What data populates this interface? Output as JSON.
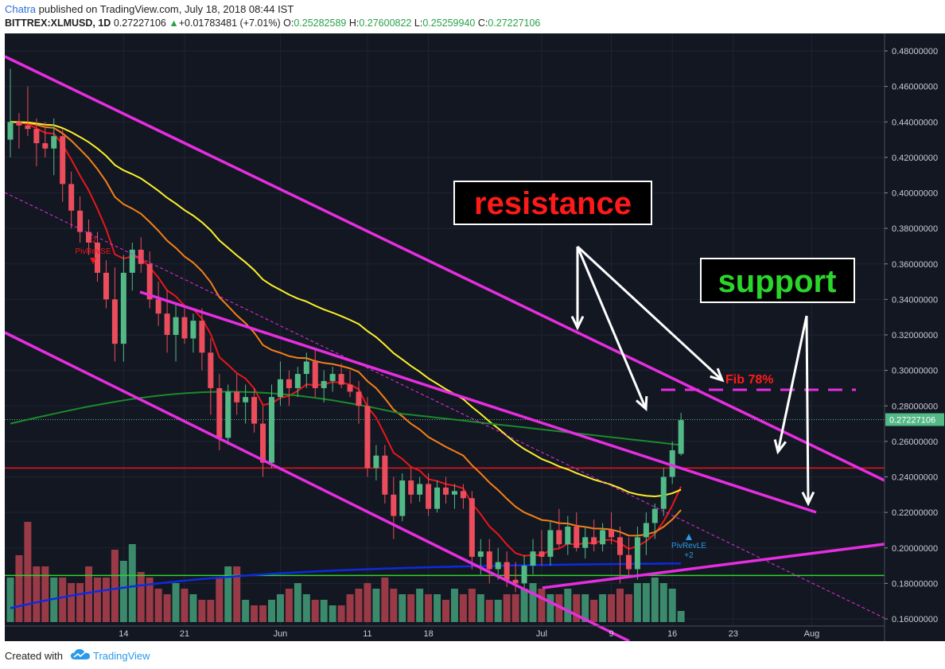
{
  "header": {
    "author": "Chatra",
    "published_text": "published on TradingView.com, July 18, 2018 08:44 IST",
    "symbol": "BITTREX:XLMUSD, 1D",
    "last": "0.27227106",
    "change": "+0.01783481 (+7.01%)",
    "o_label": "O:",
    "o_val": "0.25282589",
    "h_label": "H:",
    "h_val": "0.27600822",
    "l_label": "L:",
    "l_val": "0.25259940",
    "c_label": "C:",
    "c_val": "0.27227106"
  },
  "footer": {
    "created_with": "Created with",
    "brand": "TradingView"
  },
  "annotations": {
    "resistance": "resistance",
    "support": "support",
    "fib": "Fib 78%",
    "pivrev_se_num": "-2",
    "pivrev_se": "PivRevSE",
    "pivrev_le": "PivRevLE",
    "pivrev_le_num": "+2"
  },
  "colors": {
    "background": "#131722",
    "up_candle": "#53b987",
    "down_candle": "#eb4d5c",
    "channel": "#e62ee0",
    "ema_red": "#e8161b",
    "ema_orange": "#f57f17",
    "ema_yellow": "#fbf02a",
    "ma_green": "#1b8a2a",
    "ma_blue": "#0d2be0",
    "support_green": "#2bd62b",
    "horizontal_red": "#e8161b"
  },
  "chart_data": {
    "type": "candlestick",
    "y_axis": {
      "min": 0.15,
      "max": 0.485,
      "ticks": [
        "0.48000000",
        "0.46000000",
        "0.44000000",
        "0.42000000",
        "0.40000000",
        "0.38000000",
        "0.36000000",
        "0.34000000",
        "0.32000000",
        "0.30000000",
        "0.28000000",
        "0.26000000",
        "0.24000000",
        "0.22000000",
        "0.20000000",
        "0.18000000",
        "0.16000000"
      ],
      "last_price_label": "0.27227106",
      "last_price": 0.27227106
    },
    "x_axis": {
      "ticks": [
        {
          "label": "14",
          "index": 13
        },
        {
          "label": "21",
          "index": 20
        },
        {
          "label": "Jun",
          "index": 31
        },
        {
          "label": "11",
          "index": 41
        },
        {
          "label": "18",
          "index": 48
        },
        {
          "label": "Jul",
          "index": 61
        },
        {
          "label": "9",
          "index": 69
        },
        {
          "label": "16",
          "index": 76
        },
        {
          "label": "23",
          "index": 83
        },
        {
          "label": "Aug",
          "index": 92
        }
      ]
    },
    "candles": [
      [
        0.43,
        0.47,
        0.42,
        0.44
      ],
      [
        0.44,
        0.445,
        0.425,
        0.438
      ],
      [
        0.438,
        0.46,
        0.432,
        0.436
      ],
      [
        0.436,
        0.442,
        0.415,
        0.428
      ],
      [
        0.428,
        0.44,
        0.42,
        0.425
      ],
      [
        0.425,
        0.442,
        0.41,
        0.432
      ],
      [
        0.432,
        0.436,
        0.395,
        0.405
      ],
      [
        0.405,
        0.412,
        0.38,
        0.39
      ],
      [
        0.39,
        0.398,
        0.372,
        0.378
      ],
      [
        0.378,
        0.385,
        0.365,
        0.372
      ],
      [
        0.372,
        0.378,
        0.35,
        0.355
      ],
      [
        0.355,
        0.362,
        0.335,
        0.34
      ],
      [
        0.34,
        0.358,
        0.305,
        0.315
      ],
      [
        0.315,
        0.365,
        0.305,
        0.355
      ],
      [
        0.355,
        0.372,
        0.345,
        0.368
      ],
      [
        0.368,
        0.375,
        0.355,
        0.36
      ],
      [
        0.36,
        0.367,
        0.335,
        0.34
      ],
      [
        0.34,
        0.35,
        0.325,
        0.332
      ],
      [
        0.332,
        0.345,
        0.31,
        0.32
      ],
      [
        0.32,
        0.338,
        0.305,
        0.33
      ],
      [
        0.33,
        0.335,
        0.315,
        0.318
      ],
      [
        0.318,
        0.332,
        0.31,
        0.328
      ],
      [
        0.328,
        0.335,
        0.3,
        0.31
      ],
      [
        0.31,
        0.318,
        0.275,
        0.29
      ],
      [
        0.29,
        0.298,
        0.255,
        0.262
      ],
      [
        0.262,
        0.292,
        0.258,
        0.288
      ],
      [
        0.288,
        0.298,
        0.275,
        0.282
      ],
      [
        0.282,
        0.292,
        0.27,
        0.285
      ],
      [
        0.285,
        0.29,
        0.265,
        0.27
      ],
      [
        0.27,
        0.28,
        0.24,
        0.248
      ],
      [
        0.248,
        0.292,
        0.245,
        0.285
      ],
      [
        0.285,
        0.305,
        0.28,
        0.295
      ],
      [
        0.295,
        0.3,
        0.28,
        0.29
      ],
      [
        0.29,
        0.302,
        0.285,
        0.298
      ],
      [
        0.298,
        0.31,
        0.29,
        0.305
      ],
      [
        0.305,
        0.312,
        0.285,
        0.29
      ],
      [
        0.29,
        0.3,
        0.282,
        0.294
      ],
      [
        0.294,
        0.302,
        0.288,
        0.298
      ],
      [
        0.298,
        0.304,
        0.29,
        0.292
      ],
      [
        0.292,
        0.3,
        0.285,
        0.288
      ],
      [
        0.288,
        0.294,
        0.27,
        0.28
      ],
      [
        0.28,
        0.285,
        0.24,
        0.245
      ],
      [
        0.245,
        0.258,
        0.238,
        0.252
      ],
      [
        0.252,
        0.258,
        0.225,
        0.23
      ],
      [
        0.23,
        0.24,
        0.205,
        0.218
      ],
      [
        0.218,
        0.242,
        0.215,
        0.238
      ],
      [
        0.238,
        0.245,
        0.225,
        0.23
      ],
      [
        0.23,
        0.24,
        0.226,
        0.236
      ],
      [
        0.236,
        0.242,
        0.218,
        0.222
      ],
      [
        0.222,
        0.238,
        0.22,
        0.234
      ],
      [
        0.234,
        0.24,
        0.225,
        0.23
      ],
      [
        0.23,
        0.236,
        0.222,
        0.232
      ],
      [
        0.232,
        0.236,
        0.222,
        0.228
      ],
      [
        0.228,
        0.232,
        0.188,
        0.195
      ],
      [
        0.195,
        0.205,
        0.185,
        0.198
      ],
      [
        0.198,
        0.205,
        0.18,
        0.188
      ],
      [
        0.188,
        0.2,
        0.182,
        0.192
      ],
      [
        0.192,
        0.198,
        0.178,
        0.182
      ],
      [
        0.182,
        0.192,
        0.175,
        0.18
      ],
      [
        0.18,
        0.196,
        0.176,
        0.19
      ],
      [
        0.19,
        0.205,
        0.185,
        0.198
      ],
      [
        0.198,
        0.21,
        0.19,
        0.195
      ],
      [
        0.195,
        0.215,
        0.19,
        0.21
      ],
      [
        0.21,
        0.222,
        0.2,
        0.202
      ],
      [
        0.202,
        0.218,
        0.196,
        0.212
      ],
      [
        0.212,
        0.22,
        0.198,
        0.2
      ],
      [
        0.2,
        0.212,
        0.194,
        0.206
      ],
      [
        0.206,
        0.216,
        0.198,
        0.202
      ],
      [
        0.202,
        0.214,
        0.198,
        0.21
      ],
      [
        0.21,
        0.22,
        0.202,
        0.206
      ],
      [
        0.206,
        0.212,
        0.18,
        0.196
      ],
      [
        0.196,
        0.206,
        0.184,
        0.188
      ],
      [
        0.188,
        0.212,
        0.182,
        0.206
      ],
      [
        0.206,
        0.22,
        0.196,
        0.214
      ],
      [
        0.214,
        0.225,
        0.205,
        0.222
      ],
      [
        0.222,
        0.245,
        0.218,
        0.24
      ],
      [
        0.24,
        0.26,
        0.236,
        0.255
      ],
      [
        0.253,
        0.276,
        0.252,
        0.272
      ]
    ],
    "volume": [
      0.4,
      0.6,
      0.9,
      0.5,
      0.5,
      0.4,
      0.4,
      0.35,
      0.35,
      0.5,
      0.4,
      0.4,
      0.65,
      0.55,
      0.7,
      0.45,
      0.4,
      0.3,
      0.25,
      0.35,
      0.3,
      0.25,
      0.2,
      0.2,
      0.4,
      0.5,
      0.5,
      0.2,
      0.15,
      0.15,
      0.2,
      0.25,
      0.3,
      0.35,
      0.25,
      0.2,
      0.2,
      0.15,
      0.15,
      0.25,
      0.3,
      0.35,
      0.3,
      0.4,
      0.3,
      0.25,
      0.25,
      0.3,
      0.25,
      0.25,
      0.2,
      0.3,
      0.25,
      0.3,
      0.25,
      0.2,
      0.2,
      0.25,
      0.25,
      0.3,
      0.35,
      0.3,
      0.25,
      0.25,
      0.3,
      0.25,
      0.25,
      0.2,
      0.25,
      0.25,
      0.3,
      0.25,
      0.35,
      0.35,
      0.4,
      0.35,
      0.3,
      0.1
    ]
  }
}
